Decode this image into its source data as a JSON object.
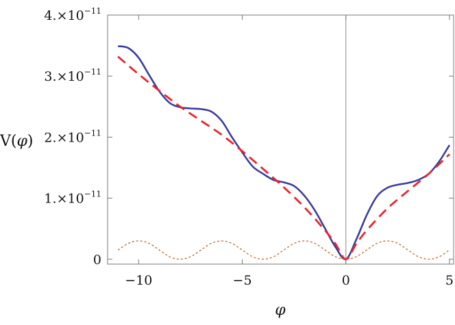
{
  "chart_data": {
    "type": "line",
    "xlabel": "φ",
    "ylabel": "V(φ)",
    "ylabel_parts": {
      "v": "V(",
      "phi": "φ",
      "close": ")"
    },
    "xlim": [
      -11.5,
      5.2
    ],
    "ylim": [
      -8e-13,
      4e-11
    ],
    "x_ticks": [
      {
        "value": -10,
        "label": "−10"
      },
      {
        "value": -5,
        "label": "−5"
      },
      {
        "value": 0,
        "label": "0"
      },
      {
        "value": 5,
        "label": "5"
      }
    ],
    "y_ticks": [
      {
        "value": 0,
        "mant": "0",
        "times": "",
        "exp": ""
      },
      {
        "value": 1e-11,
        "mant": "1.",
        "times": "×10",
        "exp": "−11"
      },
      {
        "value": 2e-11,
        "mant": "2.",
        "times": "×10",
        "exp": "−11"
      },
      {
        "value": 3e-11,
        "mant": "3.",
        "times": "×10",
        "exp": "−11"
      },
      {
        "value": 4e-11,
        "mant": "4.",
        "times": "×10",
        "exp": "−11"
      }
    ],
    "grid": false,
    "series": [
      {
        "style": "solid",
        "color": "#3a3d9c",
        "x": [
          -11,
          -10.5,
          -10,
          -9.5,
          -9,
          -8.5,
          -8,
          -7.5,
          -7,
          -6.5,
          -6,
          -5.5,
          -5,
          -4.5,
          -4,
          -3.5,
          -3,
          -2.5,
          -2,
          -1.5,
          -1,
          -0.5,
          0,
          0.5,
          1,
          1.5,
          2,
          2.5,
          3,
          3.5,
          4,
          4.5,
          5
        ],
        "y": [
          3.49e-11,
          3.46e-11,
          3.3e-11,
          3.02e-11,
          2.75e-11,
          2.56e-11,
          2.49e-11,
          2.47e-11,
          2.46e-11,
          2.42e-11,
          2.27e-11,
          2e-11,
          1.75e-11,
          1.52e-11,
          1.4e-11,
          1.3e-11,
          1.26e-11,
          1.2e-11,
          1.04e-11,
          8e-12,
          5e-12,
          2e-12,
          0.0,
          3.2e-12,
          7.2e-12,
          1.03e-11,
          1.17e-11,
          1.22e-11,
          1.25e-11,
          1.3e-11,
          1.4e-11,
          1.6e-11,
          1.87e-11
        ]
      },
      {
        "style": "dashed",
        "color": "#e8252b",
        "x": [
          -11,
          -10,
          -9,
          -8,
          -7,
          -6,
          -5,
          -4,
          -3,
          -2,
          -1,
          -0.5,
          0,
          0.5,
          1,
          2,
          3,
          4,
          5
        ],
        "y": [
          3.32e-11,
          3.03e-11,
          2.76e-11,
          2.5e-11,
          2.27e-11,
          2.04e-11,
          1.77e-11,
          1.48e-11,
          1.18e-11,
          8.5e-12,
          4.7e-12,
          2.5e-12,
          0.0,
          2.5e-12,
          4.7e-12,
          8.3e-12,
          1.12e-11,
          1.4e-11,
          1.72e-11
        ]
      },
      {
        "style": "dotted",
        "color": "#c2703a",
        "x": [
          -11,
          -10.5,
          -10,
          -9.5,
          -9,
          -8.5,
          -8,
          -7.5,
          -7,
          -6.5,
          -6,
          -5.5,
          -5,
          -4.5,
          -4,
          -3.5,
          -3,
          -2.5,
          -2,
          -1.5,
          -1,
          -0.5,
          0,
          0.5,
          1,
          1.5,
          2,
          2.5,
          3,
          3.5,
          4,
          4.5,
          5
        ],
        "y": [
          1.5e-12,
          2.6e-12,
          3e-12,
          2.6e-12,
          1.5e-12,
          4e-13,
          0.0,
          4e-13,
          1.5e-12,
          2.6e-12,
          3e-12,
          2.6e-12,
          1.5e-12,
          4e-13,
          0.0,
          4e-13,
          1.5e-12,
          2.6e-12,
          3e-12,
          2.6e-12,
          1.5e-12,
          4e-13,
          0.0,
          4e-13,
          1.5e-12,
          2.6e-12,
          3e-12,
          2.6e-12,
          1.5e-12,
          4e-13,
          0.0,
          4e-13,
          1.5e-12
        ]
      }
    ]
  }
}
